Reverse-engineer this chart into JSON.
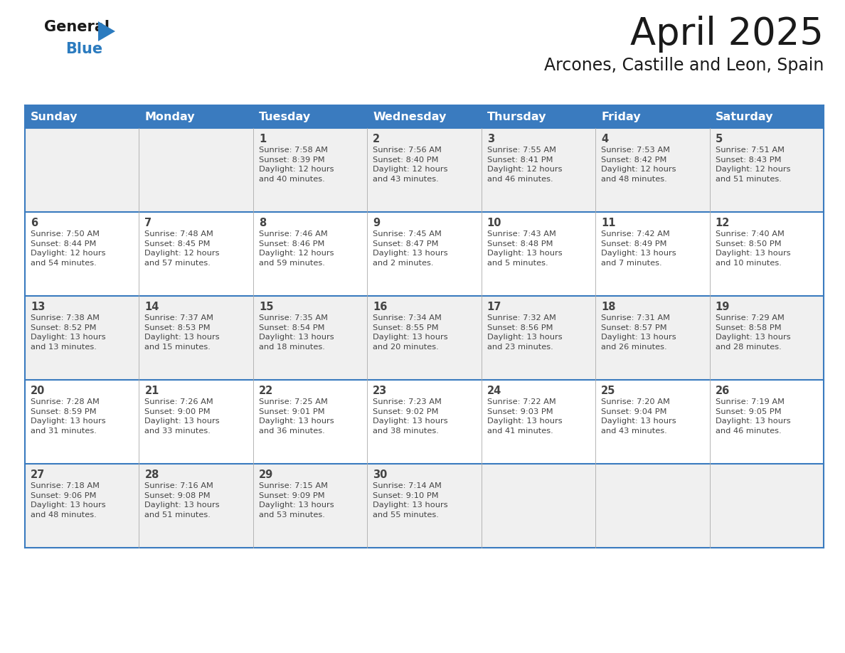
{
  "title": "April 2025",
  "subtitle": "Arcones, Castille and Leon, Spain",
  "header_bg_color": "#3a7bbf",
  "header_text_color": "#ffffff",
  "cell_bg_odd": "#f0f0f0",
  "cell_bg_even": "#ffffff",
  "day_headers": [
    "Sunday",
    "Monday",
    "Tuesday",
    "Wednesday",
    "Thursday",
    "Friday",
    "Saturday"
  ],
  "days": [
    {
      "day": 1,
      "col": 2,
      "row": 0,
      "sunrise": "7:58 AM",
      "sunset": "8:39 PM",
      "daylight": "12 hours\nand 40 minutes."
    },
    {
      "day": 2,
      "col": 3,
      "row": 0,
      "sunrise": "7:56 AM",
      "sunset": "8:40 PM",
      "daylight": "12 hours\nand 43 minutes."
    },
    {
      "day": 3,
      "col": 4,
      "row": 0,
      "sunrise": "7:55 AM",
      "sunset": "8:41 PM",
      "daylight": "12 hours\nand 46 minutes."
    },
    {
      "day": 4,
      "col": 5,
      "row": 0,
      "sunrise": "7:53 AM",
      "sunset": "8:42 PM",
      "daylight": "12 hours\nand 48 minutes."
    },
    {
      "day": 5,
      "col": 6,
      "row": 0,
      "sunrise": "7:51 AM",
      "sunset": "8:43 PM",
      "daylight": "12 hours\nand 51 minutes."
    },
    {
      "day": 6,
      "col": 0,
      "row": 1,
      "sunrise": "7:50 AM",
      "sunset": "8:44 PM",
      "daylight": "12 hours\nand 54 minutes."
    },
    {
      "day": 7,
      "col": 1,
      "row": 1,
      "sunrise": "7:48 AM",
      "sunset": "8:45 PM",
      "daylight": "12 hours\nand 57 minutes."
    },
    {
      "day": 8,
      "col": 2,
      "row": 1,
      "sunrise": "7:46 AM",
      "sunset": "8:46 PM",
      "daylight": "12 hours\nand 59 minutes."
    },
    {
      "day": 9,
      "col": 3,
      "row": 1,
      "sunrise": "7:45 AM",
      "sunset": "8:47 PM",
      "daylight": "13 hours\nand 2 minutes."
    },
    {
      "day": 10,
      "col": 4,
      "row": 1,
      "sunrise": "7:43 AM",
      "sunset": "8:48 PM",
      "daylight": "13 hours\nand 5 minutes."
    },
    {
      "day": 11,
      "col": 5,
      "row": 1,
      "sunrise": "7:42 AM",
      "sunset": "8:49 PM",
      "daylight": "13 hours\nand 7 minutes."
    },
    {
      "day": 12,
      "col": 6,
      "row": 1,
      "sunrise": "7:40 AM",
      "sunset": "8:50 PM",
      "daylight": "13 hours\nand 10 minutes."
    },
    {
      "day": 13,
      "col": 0,
      "row": 2,
      "sunrise": "7:38 AM",
      "sunset": "8:52 PM",
      "daylight": "13 hours\nand 13 minutes."
    },
    {
      "day": 14,
      "col": 1,
      "row": 2,
      "sunrise": "7:37 AM",
      "sunset": "8:53 PM",
      "daylight": "13 hours\nand 15 minutes."
    },
    {
      "day": 15,
      "col": 2,
      "row": 2,
      "sunrise": "7:35 AM",
      "sunset": "8:54 PM",
      "daylight": "13 hours\nand 18 minutes."
    },
    {
      "day": 16,
      "col": 3,
      "row": 2,
      "sunrise": "7:34 AM",
      "sunset": "8:55 PM",
      "daylight": "13 hours\nand 20 minutes."
    },
    {
      "day": 17,
      "col": 4,
      "row": 2,
      "sunrise": "7:32 AM",
      "sunset": "8:56 PM",
      "daylight": "13 hours\nand 23 minutes."
    },
    {
      "day": 18,
      "col": 5,
      "row": 2,
      "sunrise": "7:31 AM",
      "sunset": "8:57 PM",
      "daylight": "13 hours\nand 26 minutes."
    },
    {
      "day": 19,
      "col": 6,
      "row": 2,
      "sunrise": "7:29 AM",
      "sunset": "8:58 PM",
      "daylight": "13 hours\nand 28 minutes."
    },
    {
      "day": 20,
      "col": 0,
      "row": 3,
      "sunrise": "7:28 AM",
      "sunset": "8:59 PM",
      "daylight": "13 hours\nand 31 minutes."
    },
    {
      "day": 21,
      "col": 1,
      "row": 3,
      "sunrise": "7:26 AM",
      "sunset": "9:00 PM",
      "daylight": "13 hours\nand 33 minutes."
    },
    {
      "day": 22,
      "col": 2,
      "row": 3,
      "sunrise": "7:25 AM",
      "sunset": "9:01 PM",
      "daylight": "13 hours\nand 36 minutes."
    },
    {
      "day": 23,
      "col": 3,
      "row": 3,
      "sunrise": "7:23 AM",
      "sunset": "9:02 PM",
      "daylight": "13 hours\nand 38 minutes."
    },
    {
      "day": 24,
      "col": 4,
      "row": 3,
      "sunrise": "7:22 AM",
      "sunset": "9:03 PM",
      "daylight": "13 hours\nand 41 minutes."
    },
    {
      "day": 25,
      "col": 5,
      "row": 3,
      "sunrise": "7:20 AM",
      "sunset": "9:04 PM",
      "daylight": "13 hours\nand 43 minutes."
    },
    {
      "day": 26,
      "col": 6,
      "row": 3,
      "sunrise": "7:19 AM",
      "sunset": "9:05 PM",
      "daylight": "13 hours\nand 46 minutes."
    },
    {
      "day": 27,
      "col": 0,
      "row": 4,
      "sunrise": "7:18 AM",
      "sunset": "9:06 PM",
      "daylight": "13 hours\nand 48 minutes."
    },
    {
      "day": 28,
      "col": 1,
      "row": 4,
      "sunrise": "7:16 AM",
      "sunset": "9:08 PM",
      "daylight": "13 hours\nand 51 minutes."
    },
    {
      "day": 29,
      "col": 2,
      "row": 4,
      "sunrise": "7:15 AM",
      "sunset": "9:09 PM",
      "daylight": "13 hours\nand 53 minutes."
    },
    {
      "day": 30,
      "col": 3,
      "row": 4,
      "sunrise": "7:14 AM",
      "sunset": "9:10 PM",
      "daylight": "13 hours\nand 55 minutes."
    }
  ],
  "num_rows": 5,
  "num_cols": 7,
  "logo_color1": "#1a1a1a",
  "logo_color2": "#2b7bbf",
  "title_color": "#1a1a1a",
  "subtitle_color": "#1a1a1a",
  "divider_color": "#3a7bbf",
  "text_color": "#444444",
  "title_fontsize": 38,
  "subtitle_fontsize": 17,
  "header_fontsize": 11.5,
  "day_num_fontsize": 10.5,
  "cell_text_fontsize": 8.2
}
